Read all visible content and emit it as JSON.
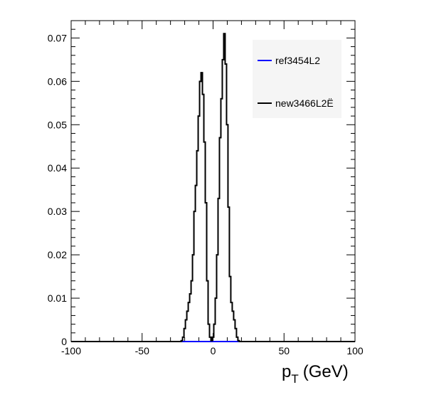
{
  "chart_data": {
    "type": "line",
    "style": "step-histogram",
    "xlabel_main": "p",
    "xlabel_sub": "T",
    "xlabel_unit": "(GeV)",
    "ylabel": "",
    "xlim": [
      -100,
      100
    ],
    "ylim": [
      0,
      0.074
    ],
    "x_ticks": [
      "-100",
      "-50",
      "0",
      "50",
      "100"
    ],
    "y_ticks": [
      "0",
      "0.01",
      "0.02",
      "0.03",
      "0.04",
      "0.05",
      "0.06",
      "0.07"
    ],
    "grid": false,
    "legend_position": "top-right",
    "series": [
      {
        "name": "ref3454L2",
        "color": "#0000ff",
        "x": [],
        "values": []
      },
      {
        "name": "new3466L2Ë",
        "color": "#000000",
        "x": [
          -22,
          -21,
          -20,
          -19,
          -18,
          -17,
          -16,
          -15,
          -14,
          -13,
          -12,
          -11,
          -10,
          -9,
          -8,
          -7,
          -6,
          -5,
          -4,
          -3,
          -2,
          -1,
          0,
          1,
          2,
          3,
          4,
          5,
          6,
          7,
          8,
          9,
          10,
          11,
          12,
          13,
          14,
          15,
          16,
          17,
          18,
          19,
          20,
          21
        ],
        "values": [
          0.0002,
          0.001,
          0.003,
          0.005,
          0.007,
          0.009,
          0.011,
          0.014,
          0.02,
          0.03,
          0.036,
          0.044,
          0.052,
          0.06,
          0.062,
          0.057,
          0.046,
          0.032,
          0.014,
          0.004,
          0.001,
          0.0002,
          0.001,
          0.004,
          0.01,
          0.02,
          0.033,
          0.047,
          0.056,
          0.065,
          0.071,
          0.064,
          0.05,
          0.031,
          0.015,
          0.009,
          0.007,
          0.005,
          0.003,
          0.001,
          0.0002,
          0.0,
          0.0,
          0.0
        ]
      }
    ]
  }
}
